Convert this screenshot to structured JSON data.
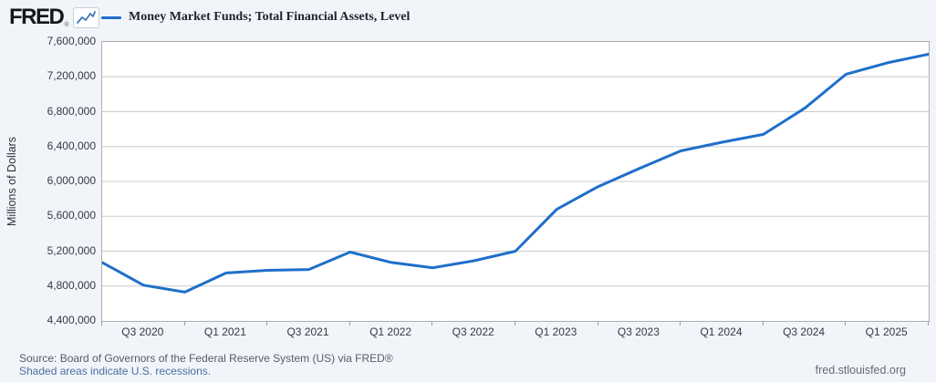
{
  "header": {
    "logo_text": "FRED",
    "logo_mark": "®",
    "sparkline_icon": "line-chart-sparkline"
  },
  "legend": {
    "series_label": "Money Market Funds; Total Financial Assets, Level",
    "swatch_color": "#1f6fca"
  },
  "colors": {
    "series_line": "#1f6fca",
    "gridline": "#cccccc",
    "plot_border": "#adadad",
    "page_background": "#f1f5fa",
    "link_blue": "#4a6f9f"
  },
  "chart_data": {
    "type": "line",
    "title": "Money Market Funds; Total Financial Assets, Level",
    "xlabel": "",
    "ylabel": "Millions of Dollars",
    "ylim": [
      4400000,
      7600000
    ],
    "grid": "horizontal",
    "legend_position": "top-left",
    "line_color": "#1f6fca",
    "x": [
      "2020 Q2",
      "2020 Q3",
      "2020 Q4",
      "2021 Q1",
      "2021 Q2",
      "2021 Q3",
      "2021 Q4",
      "2022 Q1",
      "2022 Q2",
      "2022 Q3",
      "2022 Q4",
      "2023 Q1",
      "2023 Q2",
      "2023 Q3",
      "2023 Q4",
      "2024 Q1",
      "2024 Q2",
      "2024 Q3",
      "2024 Q4",
      "2025 Q1",
      "2025 Q2"
    ],
    "values": [
      5070000,
      4810000,
      4730000,
      4950000,
      4980000,
      4990000,
      5190000,
      5070000,
      5010000,
      5090000,
      5200000,
      5680000,
      5940000,
      6150000,
      6350000,
      6450000,
      6540000,
      6840000,
      7230000,
      7360000,
      7460000
    ],
    "y_tick_labels": [
      "7,600,000",
      "7,200,000",
      "6,800,000",
      "6,400,000",
      "6,000,000",
      "5,600,000",
      "5,200,000",
      "4,800,000",
      "4,400,000"
    ],
    "x_tick_labels": [
      "Q3 2020",
      "Q1 2021",
      "Q3 2021",
      "Q1 2022",
      "Q3 2022",
      "Q1 2023",
      "Q3 2023",
      "Q1 2024",
      "Q3 2024",
      "Q1 2025"
    ]
  },
  "footer": {
    "source_line": "Source: Board of Governors of the Federal Reserve System (US) via FRED®",
    "recession_note": "Shaded areas indicate U.S. recessions.",
    "site_link": "fred.stlouisfed.org"
  }
}
